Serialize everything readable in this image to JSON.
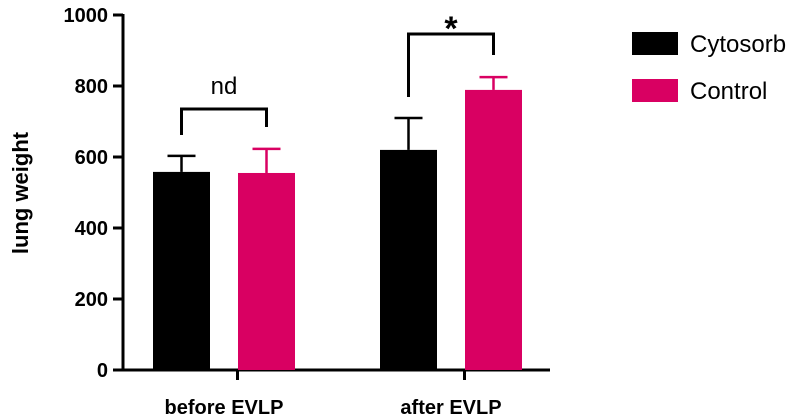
{
  "chart_data": {
    "type": "bar",
    "title": "",
    "xlabel": "",
    "ylabel": "lung weight",
    "ylim": [
      0,
      1000
    ],
    "yticks": [
      0,
      200,
      400,
      600,
      800,
      1000
    ],
    "categories": [
      "before EVLP",
      "after EVLP"
    ],
    "series": [
      {
        "name": "Cytosorb",
        "color": "#000000",
        "values": [
          558,
          620
        ],
        "error": [
          45,
          90
        ]
      },
      {
        "name": "Control",
        "color": "#D90062",
        "values": [
          555,
          789
        ],
        "error": [
          68,
          36
        ]
      }
    ],
    "annotations": [
      {
        "category": "before EVLP",
        "text": "nd"
      },
      {
        "category": "after EVLP",
        "text": "*"
      }
    ],
    "legend": "right",
    "grid": false
  }
}
